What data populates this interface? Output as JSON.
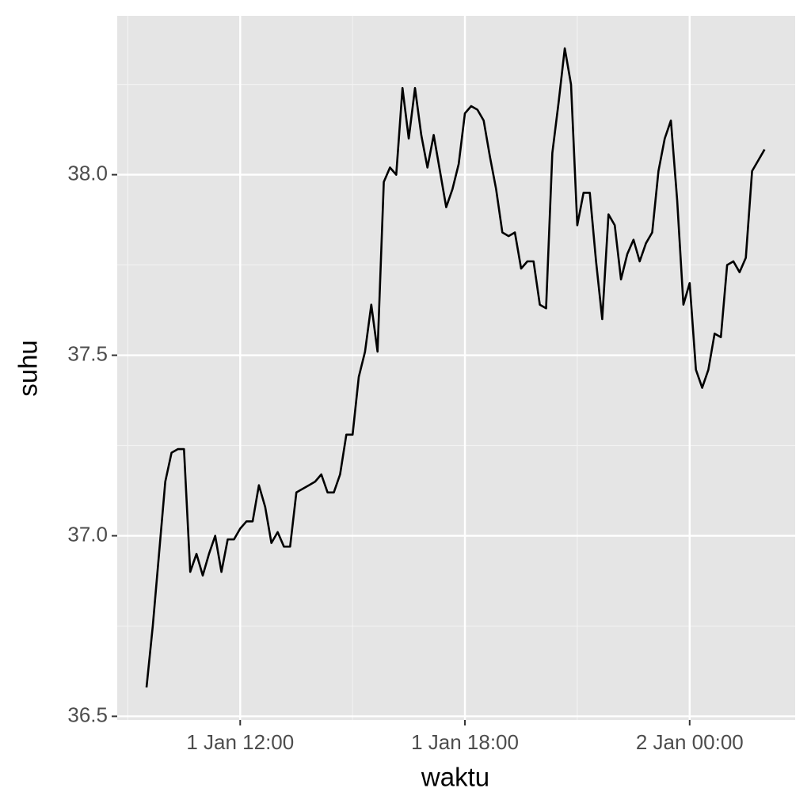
{
  "chart_data": {
    "type": "line",
    "x_label": "waktu",
    "y_label": "suhu",
    "x": [
      "1 Jan 09:30",
      "1 Jan 09:40",
      "1 Jan 09:50",
      "1 Jan 10:00",
      "1 Jan 10:10",
      "1 Jan 10:20",
      "1 Jan 10:30",
      "1 Jan 10:40",
      "1 Jan 10:50",
      "1 Jan 11:00",
      "1 Jan 11:10",
      "1 Jan 11:20",
      "1 Jan 11:30",
      "1 Jan 11:40",
      "1 Jan 11:50",
      "1 Jan 12:00",
      "1 Jan 12:10",
      "1 Jan 12:20",
      "1 Jan 12:30",
      "1 Jan 12:40",
      "1 Jan 12:50",
      "1 Jan 13:00",
      "1 Jan 13:10",
      "1 Jan 13:20",
      "1 Jan 13:30",
      "1 Jan 13:40",
      "1 Jan 13:50",
      "1 Jan 14:00",
      "1 Jan 14:10",
      "1 Jan 14:20",
      "1 Jan 14:30",
      "1 Jan 14:40",
      "1 Jan 14:50",
      "1 Jan 15:00",
      "1 Jan 15:10",
      "1 Jan 15:20",
      "1 Jan 15:30",
      "1 Jan 15:40",
      "1 Jan 15:50",
      "1 Jan 16:00",
      "1 Jan 16:10",
      "1 Jan 16:20",
      "1 Jan 16:30",
      "1 Jan 16:40",
      "1 Jan 16:50",
      "1 Jan 17:00",
      "1 Jan 17:10",
      "1 Jan 17:20",
      "1 Jan 17:30",
      "1 Jan 17:40",
      "1 Jan 17:50",
      "1 Jan 18:00",
      "1 Jan 18:10",
      "1 Jan 18:20",
      "1 Jan 18:30",
      "1 Jan 18:40",
      "1 Jan 18:50",
      "1 Jan 19:00",
      "1 Jan 19:10",
      "1 Jan 19:20",
      "1 Jan 19:30",
      "1 Jan 19:40",
      "1 Jan 19:50",
      "1 Jan 20:00",
      "1 Jan 20:10",
      "1 Jan 20:20",
      "1 Jan 20:30",
      "1 Jan 20:40",
      "1 Jan 20:50",
      "1 Jan 21:00",
      "1 Jan 21:10",
      "1 Jan 21:20",
      "1 Jan 21:30",
      "1 Jan 21:40",
      "1 Jan 21:50",
      "1 Jan 22:00",
      "1 Jan 22:10",
      "1 Jan 22:20",
      "1 Jan 22:30",
      "1 Jan 22:40",
      "1 Jan 22:50",
      "1 Jan 23:00",
      "1 Jan 23:10",
      "1 Jan 23:20",
      "1 Jan 23:30",
      "1 Jan 23:40",
      "1 Jan 23:50",
      "2 Jan 00:00",
      "2 Jan 00:10",
      "2 Jan 00:20",
      "2 Jan 00:30",
      "2 Jan 00:40",
      "2 Jan 00:50",
      "2 Jan 01:00",
      "2 Jan 01:10",
      "2 Jan 01:20",
      "2 Jan 01:30",
      "2 Jan 01:40",
      "2 Jan 01:50",
      "2 Jan 02:00"
    ],
    "series": [
      {
        "color": "#000000",
        "values": [
          36.58,
          36.75,
          36.95,
          37.15,
          37.23,
          37.24,
          37.24,
          36.9,
          36.95,
          36.89,
          36.95,
          37.0,
          36.9,
          36.99,
          36.99,
          37.02,
          37.04,
          37.04,
          37.14,
          37.08,
          36.98,
          37.01,
          36.97,
          36.97,
          37.12,
          37.13,
          37.14,
          37.15,
          37.17,
          37.12,
          37.12,
          37.17,
          37.28,
          37.28,
          37.44,
          37.51,
          37.64,
          37.51,
          37.98,
          38.02,
          38.0,
          38.24,
          38.1,
          38.24,
          38.11,
          38.02,
          38.11,
          38.01,
          37.91,
          37.96,
          38.03,
          38.17,
          38.19,
          38.18,
          38.15,
          38.05,
          37.96,
          37.84,
          37.83,
          37.84,
          37.74,
          37.76,
          37.76,
          37.64,
          37.63,
          38.06,
          38.2,
          38.35,
          38.25,
          37.86,
          37.95,
          37.95,
          37.76,
          37.6,
          37.89,
          37.86,
          37.71,
          37.78,
          37.82,
          37.76,
          37.81,
          37.84,
          38.01,
          38.1,
          38.15,
          37.93,
          37.64,
          37.7,
          37.46,
          37.41,
          37.46,
          37.56,
          37.55,
          37.75,
          37.76,
          37.73,
          37.77,
          38.01,
          38.04,
          38.07
        ]
      }
    ],
    "xlim": [
      "1 Jan 08:43",
      "2 Jan 02:49"
    ],
    "xticks": [
      "1 Jan 12:00",
      "1 Jan 18:00",
      "2 Jan 00:00"
    ],
    "ylim": [
      36.49,
      38.44
    ],
    "yticks": [
      36.5,
      {
        "value": 37,
        "label": "37.0"
      },
      37.5,
      {
        "value": 38,
        "label": "38.0"
      }
    ],
    "grid": true
  }
}
